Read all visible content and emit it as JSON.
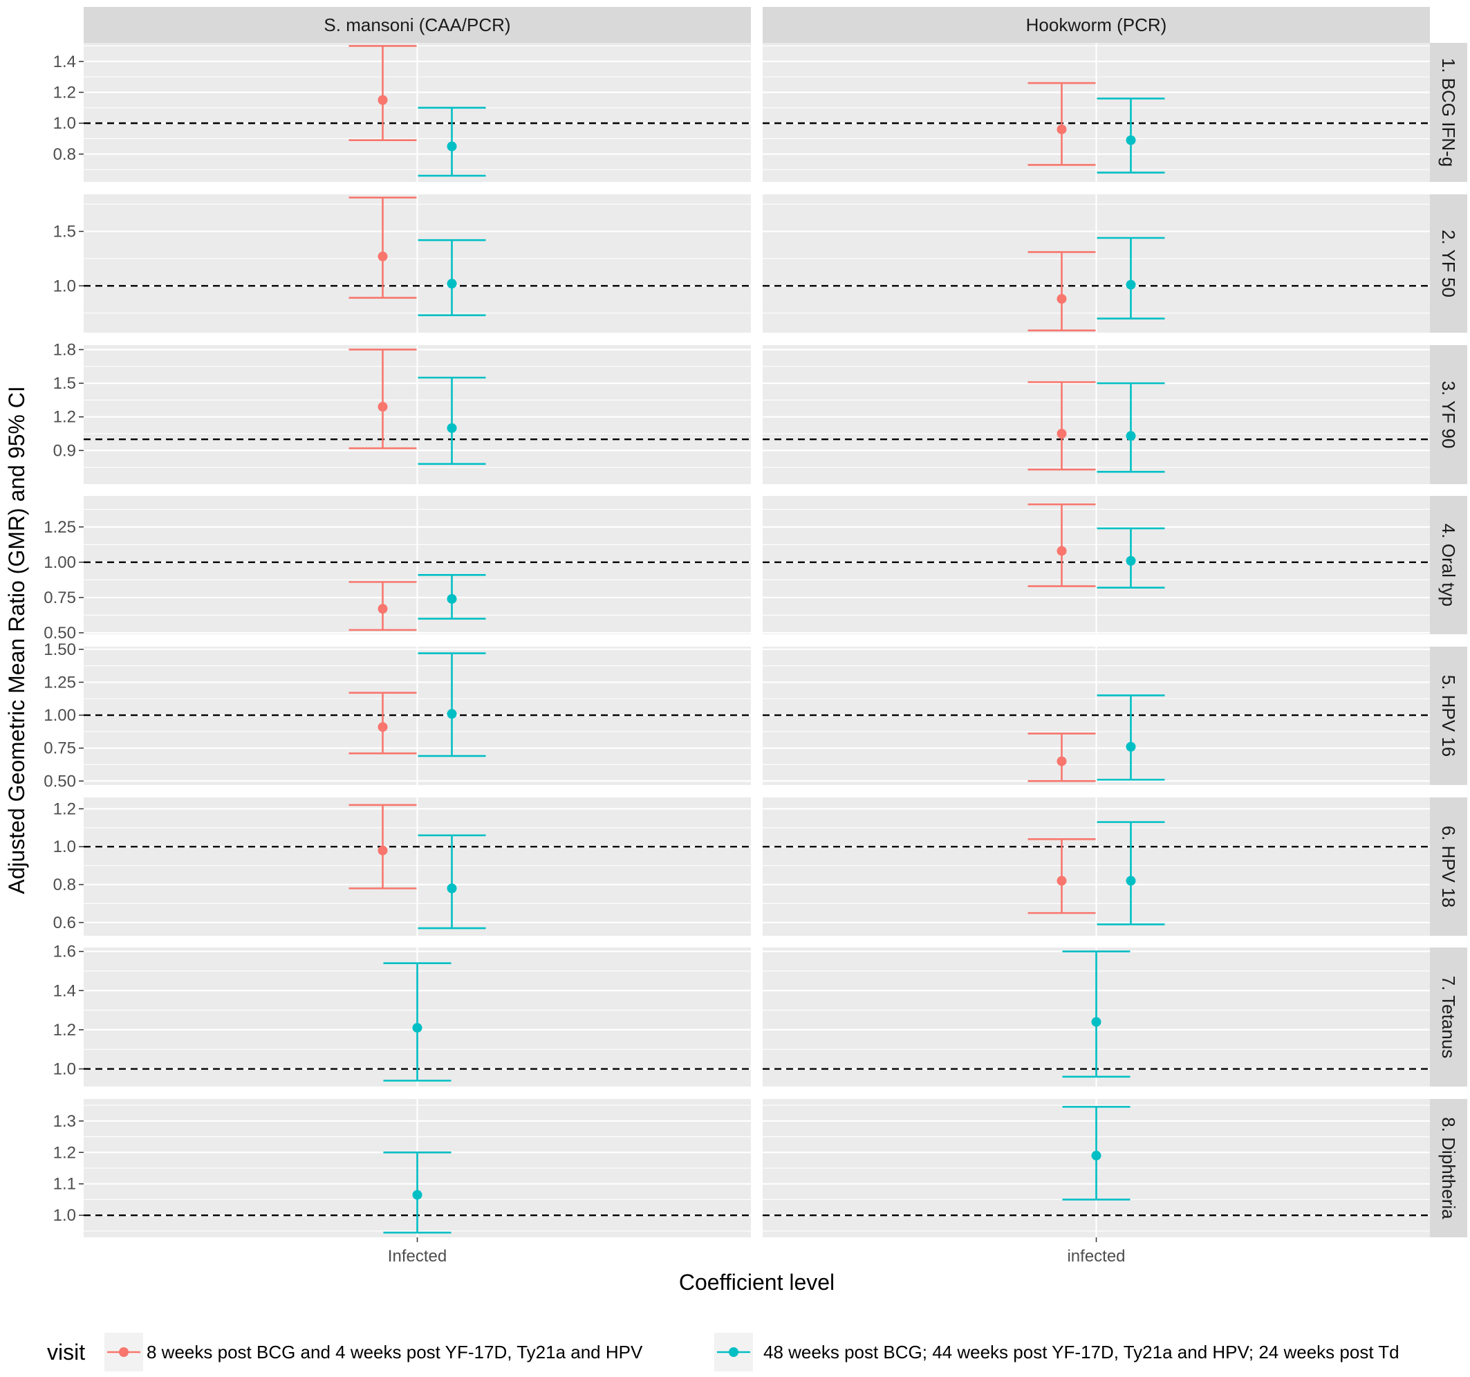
{
  "chart_data": {
    "type": "forest",
    "ylabel": "Adjusted Geometric Mean Ratio (GMR) and 95% CI",
    "xlabel": "Coefficient level",
    "reference_value": 1.0,
    "columns": [
      {
        "key": "sm",
        "title": "S. mansoni (CAA/PCR)",
        "level": "Infected"
      },
      {
        "key": "hw",
        "title": "Hookworm (PCR)",
        "level": "infected"
      }
    ],
    "legend": {
      "title": "visit",
      "position": "bottom",
      "entries": [
        {
          "key": "v1",
          "label": "8 weeks post BCG and 4 weeks post  YF-17D, Ty21a and HPV",
          "color": "#F8766D"
        },
        {
          "key": "v2",
          "label": "48 weeks post BCG; 44 weeks post YF-17D, Ty21a and HPV; 24 weeks post Td",
          "color": "#00BFC4"
        }
      ]
    },
    "rows": [
      {
        "label": "1. BCG IFN-g",
        "ylim": [
          0.62,
          1.52
        ],
        "ticks": [
          0.8,
          1.0,
          1.2,
          1.4
        ],
        "tick_labels": [
          "0.8",
          "1.0",
          "1.2",
          "1.4"
        ],
        "sm": {
          "v1": {
            "est": 1.15,
            "lo": 0.89,
            "hi": 1.5
          },
          "v2": {
            "est": 0.85,
            "lo": 0.66,
            "hi": 1.1
          }
        },
        "hw": {
          "v1": {
            "est": 0.96,
            "lo": 0.73,
            "hi": 1.26
          },
          "v2": {
            "est": 0.89,
            "lo": 0.68,
            "hi": 1.16
          }
        }
      },
      {
        "label": "2. YF 50",
        "ylim": [
          0.57,
          1.84
        ],
        "ticks": [
          1.0,
          1.5
        ],
        "tick_labels": [
          "1.0",
          "1.5"
        ],
        "sm": {
          "v1": {
            "est": 1.27,
            "lo": 0.89,
            "hi": 1.81
          },
          "v2": {
            "est": 1.02,
            "lo": 0.73,
            "hi": 1.42
          }
        },
        "hw": {
          "v1": {
            "est": 0.88,
            "lo": 0.59,
            "hi": 1.31
          },
          "v2": {
            "est": 1.01,
            "lo": 0.7,
            "hi": 1.44
          }
        }
      },
      {
        "label": "3. YF 90",
        "ylim": [
          0.6,
          1.84
        ],
        "ticks": [
          0.9,
          1.2,
          1.5,
          1.8
        ],
        "tick_labels": [
          "0.9",
          "1.2",
          "1.5",
          "1.8"
        ],
        "sm": {
          "v1": {
            "est": 1.29,
            "lo": 0.92,
            "hi": 1.8
          },
          "v2": {
            "est": 1.1,
            "lo": 0.78,
            "hi": 1.55
          }
        },
        "hw": {
          "v1": {
            "est": 1.05,
            "lo": 0.73,
            "hi": 1.51
          },
          "v2": {
            "est": 1.03,
            "lo": 0.71,
            "hi": 1.5
          }
        }
      },
      {
        "label": "4. Oral typ",
        "ylim": [
          0.49,
          1.47
        ],
        "ticks": [
          0.5,
          0.75,
          1.0,
          1.25
        ],
        "tick_labels": [
          "0.50",
          "0.75",
          "1.00",
          "1.25"
        ],
        "sm": {
          "v1": {
            "est": 0.67,
            "lo": 0.52,
            "hi": 0.86
          },
          "v2": {
            "est": 0.74,
            "lo": 0.6,
            "hi": 0.91
          }
        },
        "hw": {
          "v1": {
            "est": 1.08,
            "lo": 0.83,
            "hi": 1.41
          },
          "v2": {
            "est": 1.01,
            "lo": 0.82,
            "hi": 1.24
          }
        }
      },
      {
        "label": "5. HPV 16",
        "ylim": [
          0.47,
          1.52
        ],
        "ticks": [
          0.5,
          0.75,
          1.0,
          1.25,
          1.5
        ],
        "tick_labels": [
          "0.50",
          "0.75",
          "1.00",
          "1.25",
          "1.50"
        ],
        "sm": {
          "v1": {
            "est": 0.91,
            "lo": 0.71,
            "hi": 1.17
          },
          "v2": {
            "est": 1.01,
            "lo": 0.69,
            "hi": 1.47
          }
        },
        "hw": {
          "v1": {
            "est": 0.65,
            "lo": 0.5,
            "hi": 0.86
          },
          "v2": {
            "est": 0.76,
            "lo": 0.51,
            "hi": 1.15
          }
        }
      },
      {
        "label": "6. HPV 18",
        "ylim": [
          0.53,
          1.26
        ],
        "ticks": [
          0.6,
          0.8,
          1.0,
          1.2
        ],
        "tick_labels": [
          "0.6",
          "0.8",
          "1.0",
          "1.2"
        ],
        "sm": {
          "v1": {
            "est": 0.98,
            "lo": 0.78,
            "hi": 1.22
          },
          "v2": {
            "est": 0.78,
            "lo": 0.57,
            "hi": 1.06
          }
        },
        "hw": {
          "v1": {
            "est": 0.82,
            "lo": 0.65,
            "hi": 1.04
          },
          "v2": {
            "est": 0.82,
            "lo": 0.59,
            "hi": 1.13
          }
        }
      },
      {
        "label": "7. Tetanus",
        "ylim": [
          0.91,
          1.62
        ],
        "ticks": [
          1.0,
          1.2,
          1.4,
          1.6
        ],
        "tick_labels": [
          "1.0",
          "1.2",
          "1.4",
          "1.6"
        ],
        "sm": {
          "v1": null,
          "v2": {
            "est": 1.21,
            "lo": 0.94,
            "hi": 1.54
          }
        },
        "hw": {
          "v1": null,
          "v2": {
            "est": 1.24,
            "lo": 0.96,
            "hi": 1.6
          }
        }
      },
      {
        "label": "8. Diphtheria",
        "ylim": [
          0.93,
          1.37
        ],
        "ticks": [
          1.0,
          1.1,
          1.2,
          1.3
        ],
        "tick_labels": [
          "1.0",
          "1.1",
          "1.2",
          "1.3"
        ],
        "sm": {
          "v1": null,
          "v2": {
            "est": 1.065,
            "lo": 0.945,
            "hi": 1.2
          }
        },
        "hw": {
          "v1": null,
          "v2": {
            "est": 1.19,
            "lo": 1.05,
            "hi": 1.345
          }
        }
      }
    ]
  }
}
